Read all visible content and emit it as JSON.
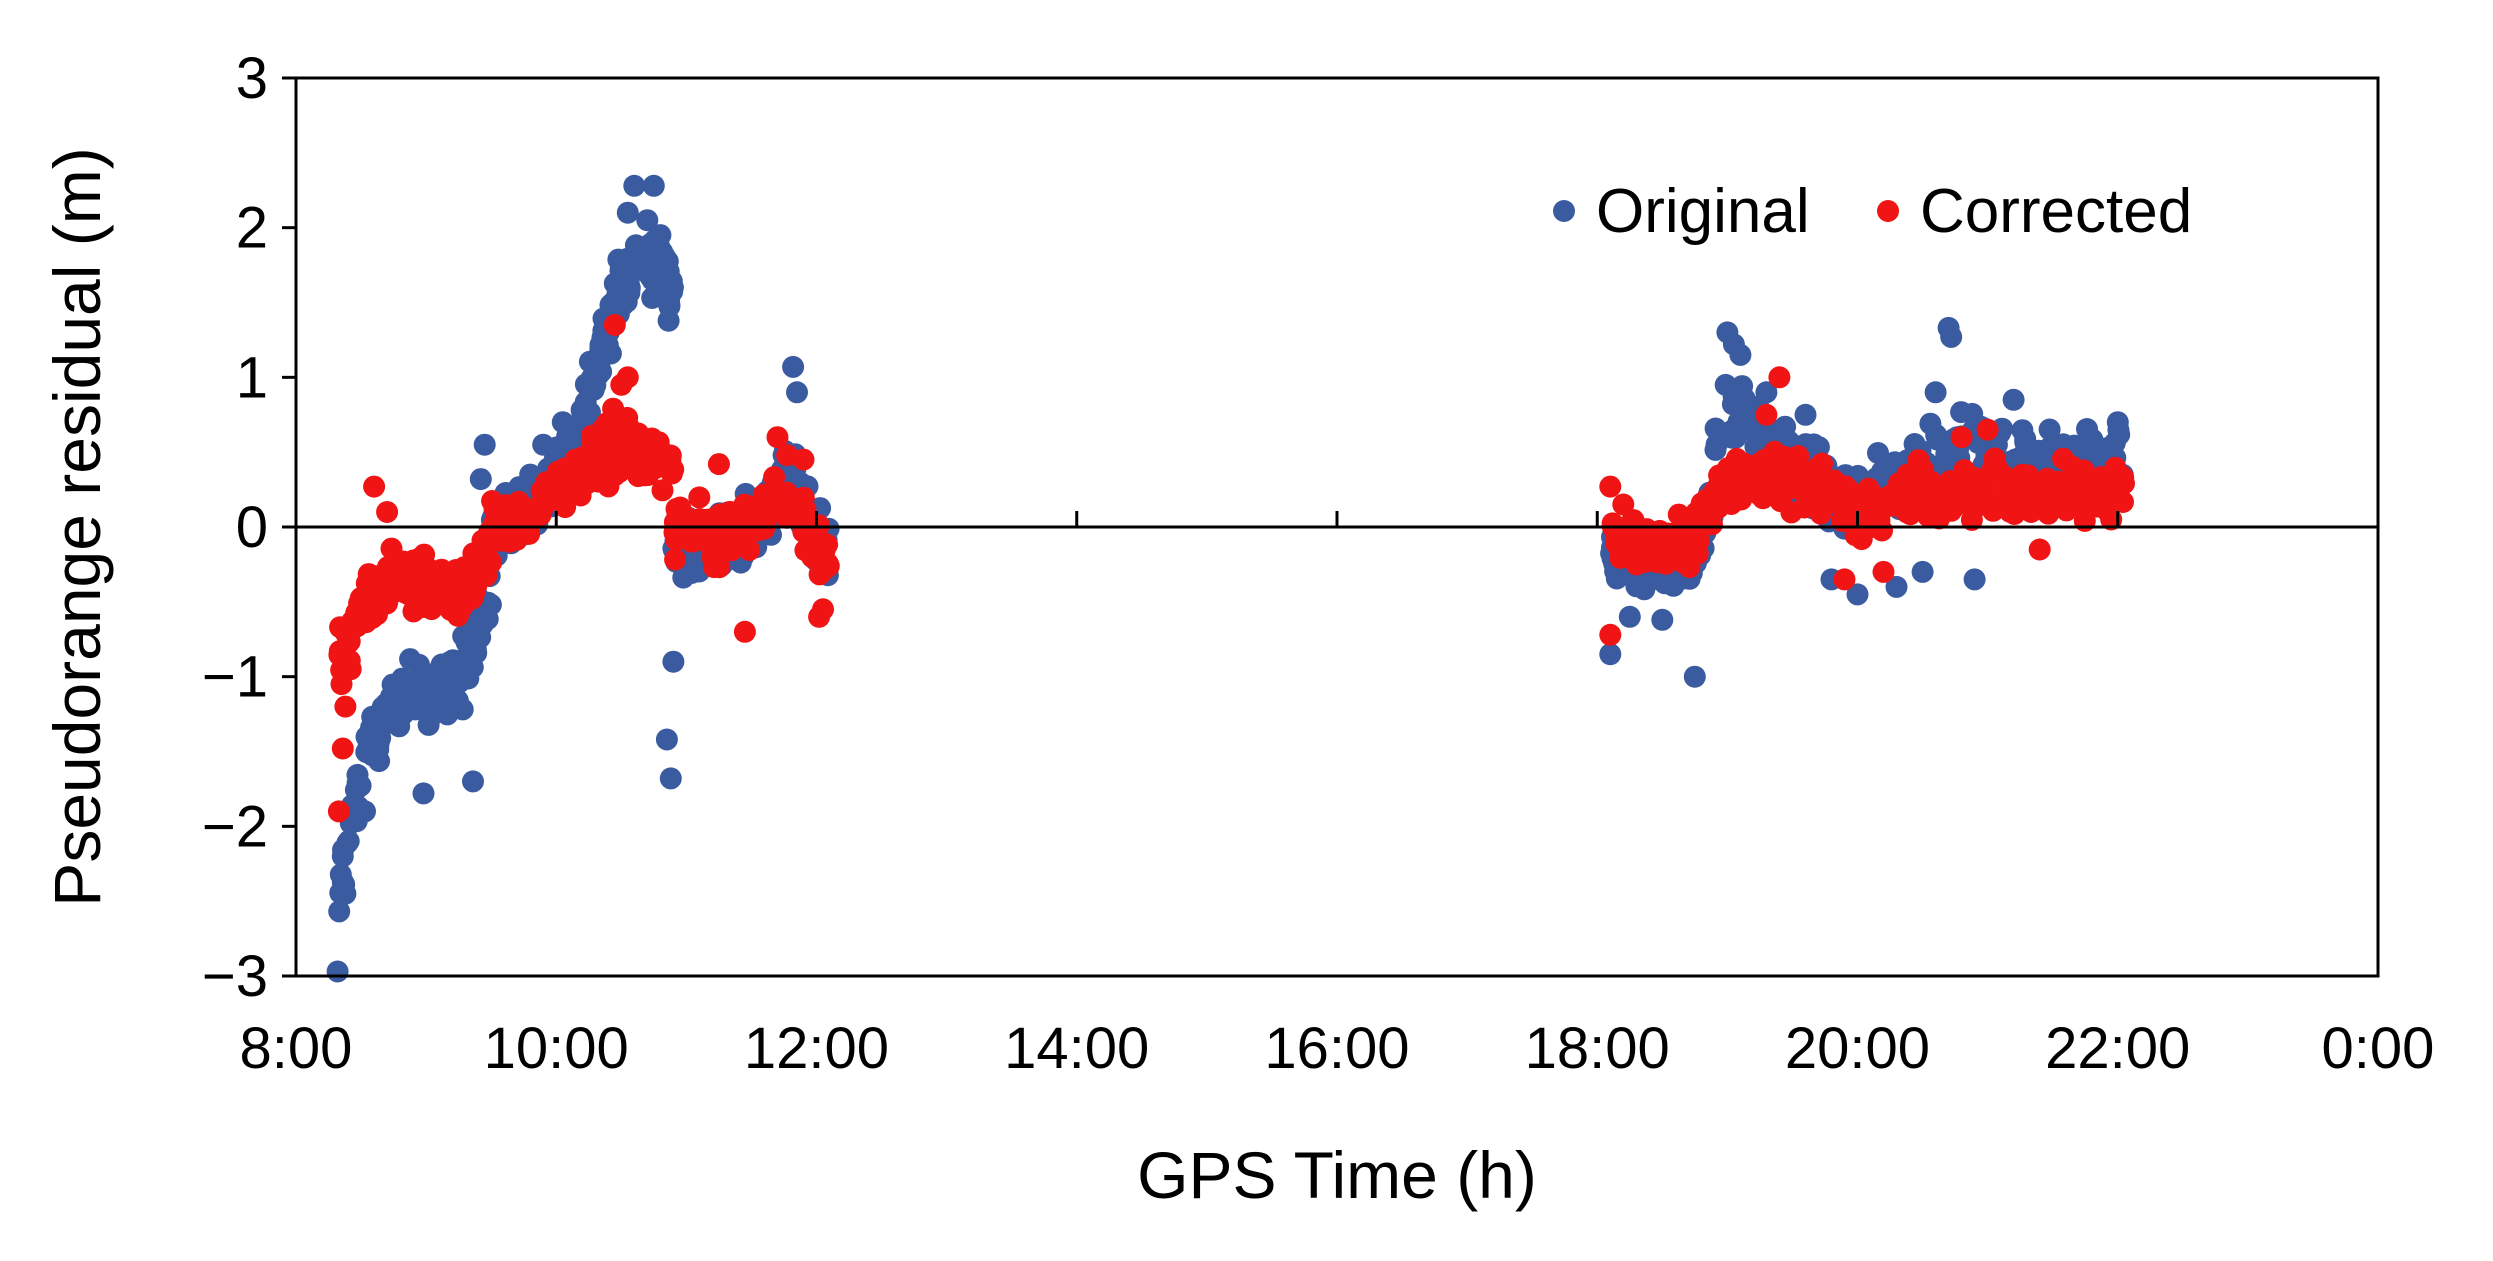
{
  "chart_data": {
    "type": "scatter",
    "xlabel": "GPS Time (h)",
    "ylabel": "Pseudorange residual (m)",
    "xlim": [
      8,
      24
    ],
    "ylim": [
      -3,
      3
    ],
    "x_ticks": [
      8,
      10,
      12,
      14,
      16,
      18,
      20,
      22,
      24
    ],
    "x_tick_labels": [
      "8:00",
      "10:00",
      "12:00",
      "14:00",
      "16:00",
      "18:00",
      "20:00",
      "22:00",
      "0:00"
    ],
    "y_ticks": [
      -3,
      -2,
      -1,
      0,
      1,
      2,
      3
    ],
    "y_tick_labels": [
      "−3",
      "−2",
      "−1",
      "0",
      "1",
      "2",
      "3"
    ],
    "zero_line": true,
    "grid": false,
    "legend_position": "top-right",
    "series": [
      {
        "name": "Original",
        "color": "#3a5ba0",
        "segments": [
          {
            "x0": 8.33,
            "x1": 9.5,
            "trend": [
              [
                8.33,
                -2.5
              ],
              [
                8.45,
                -1.8
              ],
              [
                8.6,
                -1.4
              ],
              [
                8.8,
                -1.15
              ],
              [
                9.0,
                -1.1
              ],
              [
                9.25,
                -1.05
              ],
              [
                9.5,
                -0.4
              ]
            ],
            "spread": 0.35,
            "count": 150
          },
          {
            "x0": 9.5,
            "x1": 10.25,
            "trend": [
              [
                9.5,
                0.0
              ],
              [
                9.8,
                0.1
              ],
              [
                10.0,
                0.4
              ],
              [
                10.25,
                0.8
              ]
            ],
            "spread": 0.3,
            "count": 90
          },
          {
            "x0": 10.25,
            "x1": 10.9,
            "trend": [
              [
                10.25,
                0.9
              ],
              [
                10.45,
                1.45
              ],
              [
                10.6,
                1.75
              ],
              [
                10.75,
                1.8
              ],
              [
                10.9,
                1.6
              ]
            ],
            "spread": 0.35,
            "count": 110
          },
          {
            "x0": 10.9,
            "x1": 12.1,
            "trend": [
              [
                10.9,
                -0.2
              ],
              [
                11.2,
                -0.1
              ],
              [
                11.5,
                0.0
              ],
              [
                11.8,
                0.35
              ],
              [
                12.1,
                -0.2
              ]
            ],
            "spread": 0.35,
            "count": 110
          },
          {
            "x0": 18.1,
            "x1": 18.9,
            "trend": [
              [
                18.1,
                -0.2
              ],
              [
                18.4,
                -0.3
              ],
              [
                18.7,
                -0.3
              ],
              [
                18.9,
                0.2
              ]
            ],
            "spread": 0.3,
            "count": 100
          },
          {
            "x0": 18.9,
            "x1": 22.05,
            "trend": [
              [
                18.9,
                0.6
              ],
              [
                19.1,
                0.8
              ],
              [
                19.5,
                0.4
              ],
              [
                20.0,
                0.15
              ],
              [
                20.5,
                0.4
              ],
              [
                20.8,
                0.55
              ],
              [
                21.2,
                0.5
              ],
              [
                21.6,
                0.45
              ],
              [
                22.05,
                0.45
              ]
            ],
            "spread": 0.35,
            "count": 260
          }
        ],
        "points": [
          [
            8.32,
            -2.97
          ],
          [
            8.38,
            -2.45
          ],
          [
            8.36,
            -2.2
          ],
          [
            8.48,
            -1.87
          ],
          [
            8.53,
            -1.9
          ],
          [
            8.98,
            -1.78
          ],
          [
            9.36,
            -1.7
          ],
          [
            10.88,
            -1.68
          ],
          [
            10.85,
            -1.42
          ],
          [
            10.9,
            -0.9
          ],
          [
            10.6,
            2.28
          ],
          [
            10.75,
            2.28
          ],
          [
            10.55,
            2.1
          ],
          [
            10.7,
            2.05
          ],
          [
            10.8,
            1.95
          ],
          [
            10.65,
            1.85
          ],
          [
            11.82,
            1.07
          ],
          [
            11.85,
            0.9
          ],
          [
            9.45,
            0.55
          ],
          [
            9.42,
            0.32
          ],
          [
            9.8,
            0.35
          ],
          [
            9.9,
            0.55
          ],
          [
            10.05,
            0.7
          ],
          [
            18.75,
            -1.0
          ],
          [
            18.1,
            -0.85
          ],
          [
            18.25,
            -0.6
          ],
          [
            18.5,
            -0.62
          ],
          [
            19.0,
            1.3
          ],
          [
            19.05,
            1.22
          ],
          [
            19.1,
            1.15
          ],
          [
            20.7,
            1.33
          ],
          [
            20.72,
            1.27
          ],
          [
            19.3,
            0.9
          ],
          [
            19.6,
            0.75
          ],
          [
            20.6,
            0.9
          ],
          [
            21.2,
            0.85
          ],
          [
            22.0,
            0.7
          ],
          [
            20.0,
            -0.45
          ],
          [
            20.3,
            -0.4
          ],
          [
            19.8,
            -0.35
          ],
          [
            20.5,
            -0.3
          ],
          [
            20.9,
            -0.35
          ]
        ]
      },
      {
        "name": "Corrected",
        "color": "#f01414",
        "segments": [
          {
            "x0": 8.33,
            "x1": 9.5,
            "trend": [
              [
                8.33,
                -0.85
              ],
              [
                8.5,
                -0.55
              ],
              [
                8.7,
                -0.35
              ],
              [
                9.0,
                -0.35
              ],
              [
                9.25,
                -0.45
              ],
              [
                9.5,
                -0.15
              ]
            ],
            "spread": 0.3,
            "count": 170
          },
          {
            "x0": 9.5,
            "x1": 10.25,
            "trend": [
              [
                9.5,
                0.0
              ],
              [
                9.8,
                0.05
              ],
              [
                10.0,
                0.25
              ],
              [
                10.25,
                0.4
              ]
            ],
            "spread": 0.25,
            "count": 100
          },
          {
            "x0": 10.25,
            "x1": 10.9,
            "trend": [
              [
                10.25,
                0.45
              ],
              [
                10.5,
                0.55
              ],
              [
                10.7,
                0.5
              ],
              [
                10.9,
                0.35
              ]
            ],
            "spread": 0.3,
            "count": 100
          },
          {
            "x0": 10.9,
            "x1": 12.1,
            "trend": [
              [
                10.9,
                0.0
              ],
              [
                11.2,
                -0.05
              ],
              [
                11.5,
                0.0
              ],
              [
                11.8,
                0.25
              ],
              [
                12.1,
                -0.3
              ]
            ],
            "spread": 0.3,
            "count": 120
          },
          {
            "x0": 18.1,
            "x1": 18.9,
            "trend": [
              [
                18.1,
                -0.05
              ],
              [
                18.4,
                -0.1
              ],
              [
                18.7,
                -0.1
              ],
              [
                18.9,
                0.15
              ]
            ],
            "spread": 0.25,
            "count": 100
          },
          {
            "x0": 18.9,
            "x1": 22.05,
            "trend": [
              [
                18.9,
                0.25
              ],
              [
                19.3,
                0.35
              ],
              [
                19.6,
                0.3
              ],
              [
                20.0,
                0.1
              ],
              [
                20.4,
                0.2
              ],
              [
                20.8,
                0.25
              ],
              [
                21.2,
                0.2
              ],
              [
                21.6,
                0.25
              ],
              [
                22.05,
                0.25
              ]
            ],
            "spread": 0.28,
            "count": 300
          }
        ],
        "points": [
          [
            8.33,
            -1.9
          ],
          [
            8.36,
            -1.48
          ],
          [
            8.38,
            -1.2
          ],
          [
            8.35,
            -1.05
          ],
          [
            8.42,
            -0.95
          ],
          [
            8.6,
            0.27
          ],
          [
            8.7,
            0.1
          ],
          [
            10.45,
            1.35
          ],
          [
            10.55,
            1.0
          ],
          [
            10.5,
            0.95
          ],
          [
            11.7,
            0.6
          ],
          [
            11.25,
            0.42
          ],
          [
            11.9,
            0.45
          ],
          [
            12.05,
            -0.55
          ],
          [
            12.02,
            -0.6
          ],
          [
            11.45,
            -0.7
          ],
          [
            18.1,
            -0.72
          ],
          [
            18.1,
            0.27
          ],
          [
            18.2,
            0.15
          ],
          [
            19.4,
            1.0
          ],
          [
            19.3,
            0.75
          ],
          [
            20.8,
            0.6
          ],
          [
            21.0,
            0.65
          ],
          [
            19.9,
            -0.35
          ],
          [
            20.2,
            -0.3
          ],
          [
            21.4,
            -0.15
          ],
          [
            21.95,
            0.05
          ]
        ]
      }
    ]
  }
}
